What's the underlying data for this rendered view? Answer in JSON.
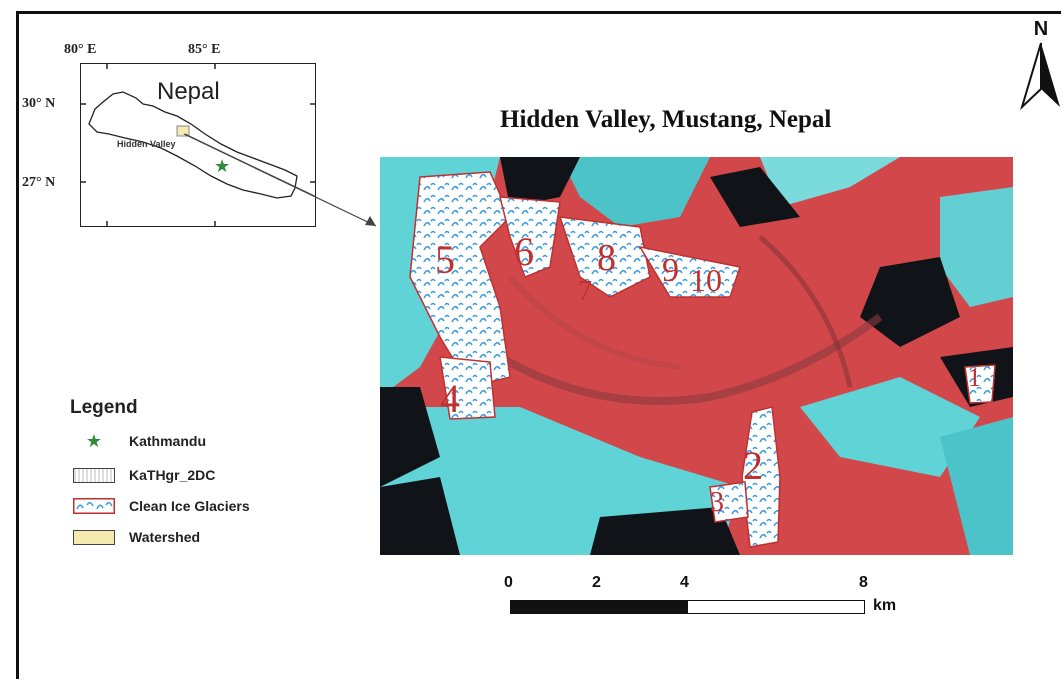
{
  "map": {
    "title": "Hidden Valley, Mustang, Nepal",
    "north_label": "N",
    "colors": {
      "ice": "#5fd3d6",
      "vegetation": "#e03a3a",
      "shadow": "#101418",
      "glacier_fill": "#ffffff",
      "glacier_hatch": "#3a9be0",
      "glacier_number": "#c0302f",
      "star": "#2e8b3a",
      "watershed": "#f5e9b0"
    }
  },
  "inset": {
    "country_label": "Nepal",
    "site_label": "Hidden Valley",
    "lon_labels": [
      "80° E",
      "85° E"
    ],
    "lat_labels": [
      "30° N",
      "27° N"
    ]
  },
  "glacier_labels": [
    "1",
    "2",
    "3",
    "4",
    "5",
    "6",
    "7",
    "8",
    "9",
    "10"
  ],
  "legend": {
    "title": "Legend",
    "items": [
      {
        "label": "Kathmandu",
        "symbol": "star-icon"
      },
      {
        "label": "KaTHgr_2DC",
        "symbol": "gray-hatch-swatch"
      },
      {
        "label": "Clean Ice Glaciers",
        "symbol": "blue-hatch-swatch"
      },
      {
        "label": "Watershed",
        "symbol": "yellow-swatch"
      }
    ]
  },
  "scale_bar": {
    "labels": [
      "0",
      "2",
      "4",
      "8"
    ],
    "unit": "km"
  }
}
